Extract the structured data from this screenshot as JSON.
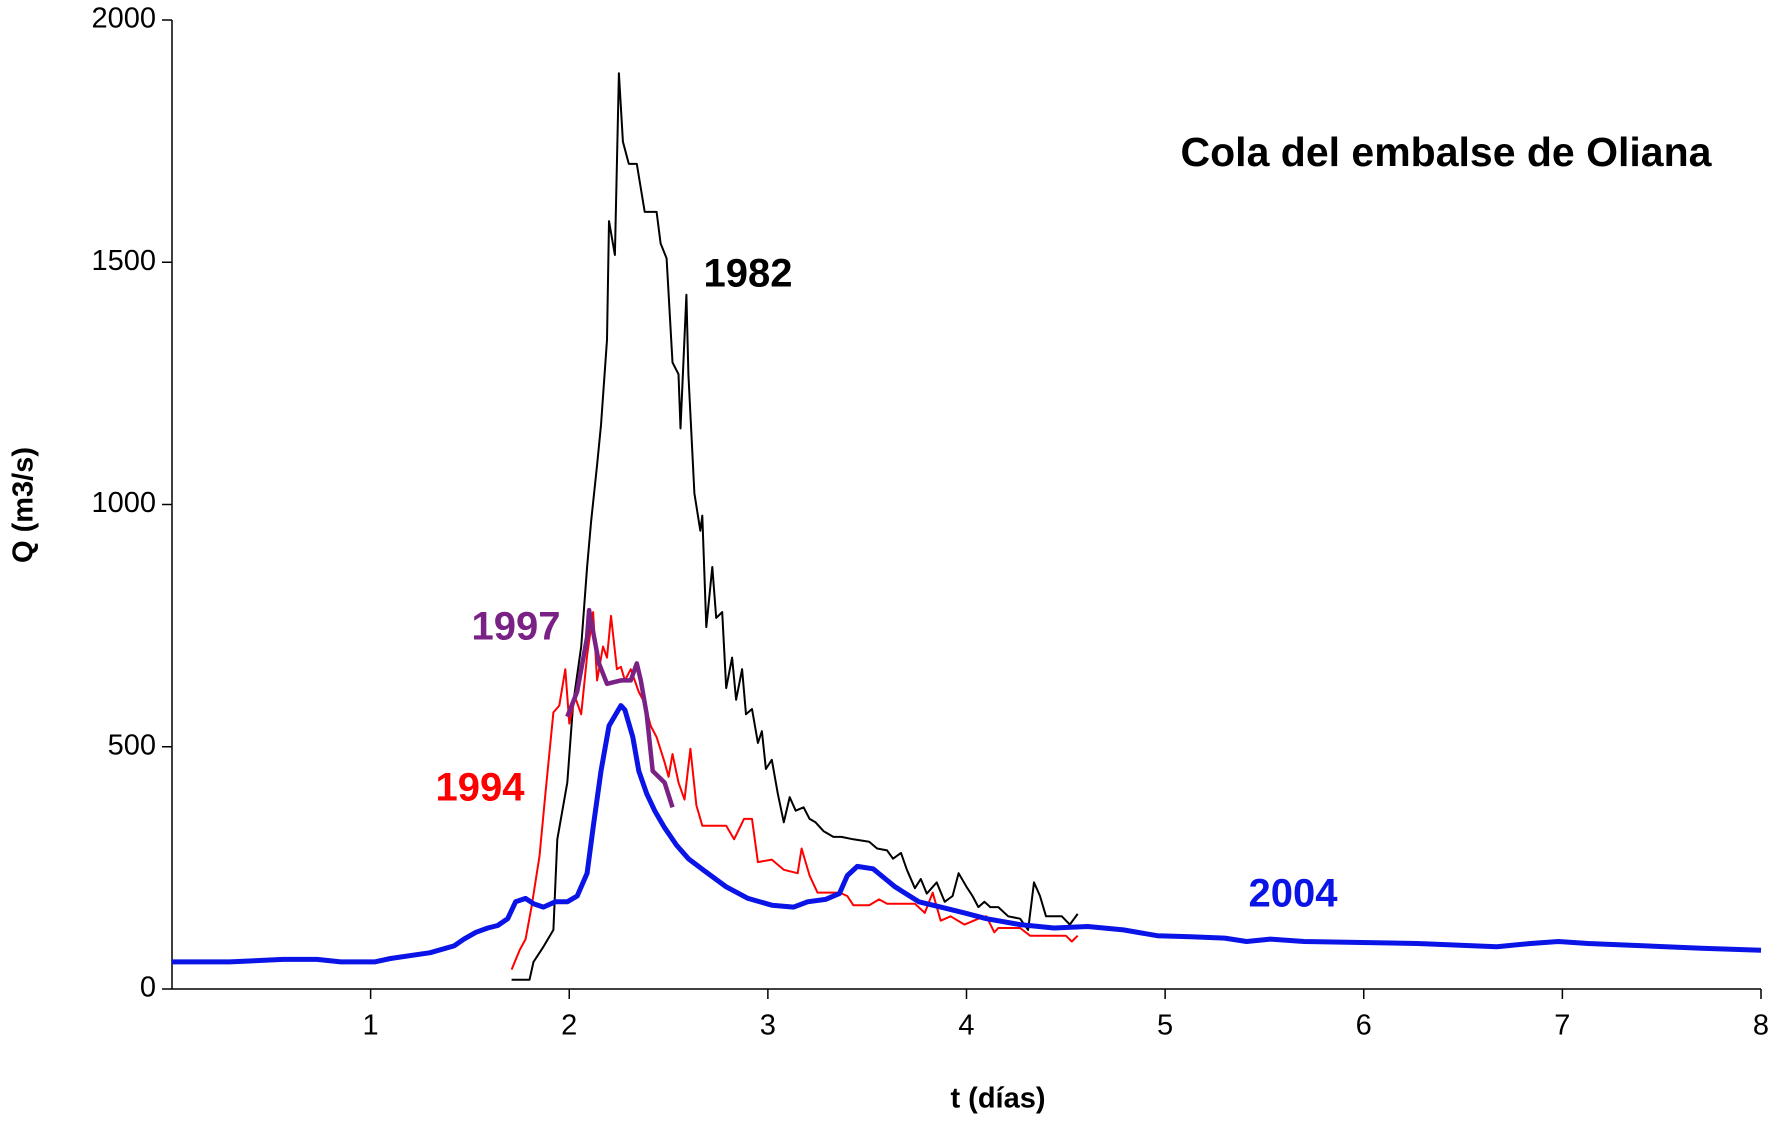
{
  "chart_data": {
    "type": "line",
    "title": "Cola del embalse de Oliana",
    "x_label": "t (días)",
    "y_label": "Q (m3/s)",
    "xlim": [
      0,
      8
    ],
    "xticks": [
      1,
      2,
      3,
      4,
      5,
      6,
      7,
      8
    ],
    "ylim": [
      0,
      2000
    ],
    "yticks": [
      0,
      500,
      1000,
      1500,
      2000
    ],
    "grid": false,
    "series": [
      {
        "name": "1982",
        "color": "#000000",
        "x": [
          1.71,
          1.8,
          1.82,
          1.87,
          1.92,
          1.94,
          1.99,
          2.02,
          2.06,
          2.09,
          2.11,
          2.14,
          2.16,
          2.19,
          2.2,
          2.23,
          2.25,
          2.27,
          2.3,
          2.34,
          2.38,
          2.44,
          2.46,
          2.49,
          2.52,
          2.55,
          2.56,
          2.59,
          2.6,
          2.63,
          2.66,
          2.67,
          2.69,
          2.72,
          2.74,
          2.77,
          2.79,
          2.82,
          2.84,
          2.87,
          2.89,
          2.92,
          2.95,
          2.97,
          2.99,
          3.02,
          3.05,
          3.08,
          3.11,
          3.14,
          3.18,
          3.21,
          3.24,
          3.28,
          3.33,
          3.37,
          3.43,
          3.51,
          3.55,
          3.6,
          3.63,
          3.67,
          3.7,
          3.74,
          3.77,
          3.8,
          3.85,
          3.89,
          3.93,
          3.96,
          4.0,
          4.03,
          4.06,
          4.09,
          4.12,
          4.16,
          4.21,
          4.27,
          4.31,
          4.34,
          4.37,
          4.4,
          4.48,
          4.52,
          4.56
        ],
        "values": [
          19,
          19,
          56,
          87,
          122,
          309,
          426,
          590,
          707,
          871,
          965,
          1082,
          1164,
          1340,
          1585,
          1515,
          1890,
          1749,
          1703,
          1703,
          1604,
          1604,
          1539,
          1508,
          1293,
          1269,
          1157,
          1433,
          1269,
          1023,
          946,
          977,
          747,
          871,
          766,
          778,
          621,
          684,
          597,
          660,
          567,
          578,
          508,
          532,
          454,
          473,
          403,
          344,
          396,
          368,
          375,
          351,
          344,
          326,
          314,
          314,
          309,
          304,
          290,
          286,
          269,
          281,
          246,
          208,
          227,
          197,
          220,
          180,
          192,
          239,
          211,
          192,
          169,
          180,
          169,
          169,
          150,
          145,
          122,
          220,
          192,
          150,
          150,
          133,
          155
        ]
      },
      {
        "name": "1994",
        "color": "#ff0000",
        "x": [
          1.71,
          1.75,
          1.78,
          1.81,
          1.85,
          1.88,
          1.92,
          1.95,
          1.98,
          2.0,
          2.03,
          2.06,
          2.09,
          2.12,
          2.14,
          2.17,
          2.19,
          2.21,
          2.24,
          2.26,
          2.28,
          2.31,
          2.35,
          2.38,
          2.41,
          2.44,
          2.48,
          2.5,
          2.52,
          2.55,
          2.58,
          2.61,
          2.64,
          2.67,
          2.79,
          2.83,
          2.88,
          2.92,
          2.95,
          3.02,
          3.08,
          3.15,
          3.17,
          3.21,
          3.25,
          3.36,
          3.4,
          3.43,
          3.51,
          3.56,
          3.6,
          3.74,
          3.79,
          3.83,
          3.87,
          3.92,
          3.99,
          4.06,
          4.1,
          4.14,
          4.16,
          4.27,
          4.32,
          4.5,
          4.53,
          4.56
        ],
        "values": [
          40,
          80,
          103,
          169,
          274,
          403,
          571,
          585,
          660,
          548,
          602,
          567,
          688,
          778,
          637,
          707,
          684,
          770,
          660,
          665,
          637,
          660,
          613,
          590,
          543,
          520,
          468,
          438,
          485,
          426,
          391,
          496,
          379,
          337,
          337,
          309,
          351,
          351,
          262,
          267,
          246,
          239,
          290,
          234,
          199,
          199,
          192,
          173,
          173,
          185,
          176,
          176,
          157,
          199,
          141,
          150,
          133,
          145,
          150,
          117,
          126,
          126,
          110,
          110,
          98,
          110
        ]
      },
      {
        "name": "1997",
        "color": "#7a2185",
        "x": [
          1.99,
          2.04,
          2.09,
          2.1,
          2.15,
          2.19,
          2.26,
          2.31,
          2.34,
          2.36,
          2.39,
          2.42,
          2.48,
          2.52
        ],
        "values": [
          562,
          614,
          726,
          782,
          672,
          630,
          637,
          637,
          672,
          637,
          567,
          450,
          426,
          375
        ]
      },
      {
        "name": "2004",
        "color": "#0a14e6",
        "x": [
          0,
          0.29,
          0.56,
          0.73,
          0.85,
          1.02,
          1.1,
          1.3,
          1.42,
          1.47,
          1.53,
          1.59,
          1.64,
          1.69,
          1.73,
          1.78,
          1.82,
          1.87,
          1.93,
          1.99,
          2.04,
          2.09,
          2.12,
          2.16,
          2.2,
          2.24,
          2.26,
          2.28,
          2.32,
          2.35,
          2.39,
          2.43,
          2.48,
          2.54,
          2.6,
          2.68,
          2.79,
          2.9,
          3.02,
          3.13,
          3.2,
          3.29,
          3.36,
          3.4,
          3.45,
          3.53,
          3.64,
          3.76,
          3.87,
          3.99,
          4.1,
          4.27,
          4.44,
          4.61,
          4.79,
          4.96,
          5.13,
          5.3,
          5.41,
          5.53,
          5.7,
          5.99,
          6.27,
          6.44,
          6.67,
          6.84,
          6.98,
          7.13,
          7.42,
          7.7,
          8.0
        ],
        "values": [
          56,
          56,
          61,
          61,
          56,
          56,
          63,
          75,
          89,
          103,
          117,
          126,
          131,
          145,
          180,
          187,
          176,
          169,
          180,
          180,
          192,
          239,
          333,
          450,
          543,
          571,
          585,
          576,
          520,
          450,
          403,
          368,
          333,
          297,
          269,
          244,
          211,
          187,
          173,
          169,
          180,
          185,
          197,
          234,
          253,
          248,
          211,
          180,
          169,
          157,
          145,
          133,
          126,
          129,
          122,
          110,
          108,
          105,
          98,
          103,
          98,
          96,
          94,
          91,
          87,
          94,
          98,
          94,
          89,
          84,
          80
        ]
      }
    ]
  }
}
